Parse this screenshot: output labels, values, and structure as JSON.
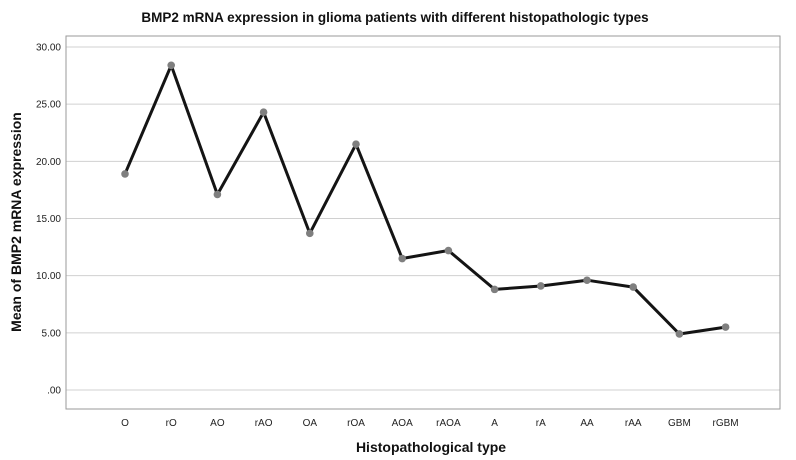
{
  "chart_data": {
    "type": "line",
    "title": "BMP2 mRNA expression in glioma patients with different histopathologic types",
    "xlabel": "Histopathological type",
    "ylabel": "Mean of BMP2 mRNA expression",
    "categories": [
      "O",
      "rO",
      "AO",
      "rAO",
      "OA",
      "rOA",
      "AOA",
      "rAOA",
      "A",
      "rA",
      "AA",
      "rAA",
      "GBM",
      "rGBM"
    ],
    "series": [
      {
        "values": [
          18.9,
          28.4,
          17.1,
          24.3,
          13.7,
          21.5,
          11.5,
          12.2,
          8.8,
          9.1,
          9.6,
          9.0,
          4.9,
          5.5
        ]
      }
    ],
    "ylim": [
      0,
      30
    ],
    "yticks": [
      0,
      5,
      10,
      15,
      20,
      25,
      30
    ],
    "ytick_labels": [
      ".00",
      "5.00",
      "10.00",
      "15.00",
      "20.00",
      "25.00",
      "30.00"
    ],
    "grid": "horizontal",
    "colors": {
      "line": "#141414",
      "marker": "#7f7f7f",
      "grid": "#d0d0d0",
      "frame": "#9a9a9a"
    }
  }
}
